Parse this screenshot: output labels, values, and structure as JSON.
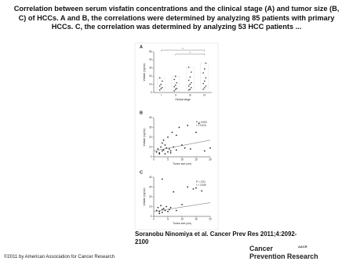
{
  "title": [
    "Correlation between serum visfatin concentrations and the clinical stage (A) and tumor size (B,",
    "C) of HCCs. A and B, the correlations were determined by analyzing 85 patients with primary",
    "HCCs. C, the correlation was determined by analyzing 53 HCC patients ..."
  ],
  "figure": {
    "panels": [
      {
        "type": "dot",
        "label": "A",
        "ylabel": "Visfatin (ng/mL)",
        "xlabel": "Clinical stage",
        "categories": [
          "I",
          "II",
          "III",
          "IV"
        ],
        "ylim": [
          0,
          50
        ],
        "yticks": [
          0,
          10,
          20,
          30,
          40,
          50
        ],
        "significance": [
          "*",
          "*"
        ],
        "values": [
          [
            3,
            5,
            6,
            8,
            10,
            14,
            18
          ],
          [
            2,
            4,
            5,
            7,
            9,
            12,
            16,
            20
          ],
          [
            3,
            4,
            6,
            8,
            10,
            12,
            15,
            19,
            25,
            31
          ],
          [
            4,
            6,
            8,
            11,
            14,
            18,
            24,
            29,
            36
          ]
        ]
      },
      {
        "type": "scatter",
        "label": "B",
        "ylabel": "Visfatin (ng/mL)",
        "xlabel": "Tumor size (cm)",
        "xlim": [
          0,
          20
        ],
        "xticks": [
          0,
          5,
          10,
          15,
          20
        ],
        "ylim": [
          0,
          40
        ],
        "yticks": [
          0,
          10,
          20,
          30,
          40
        ],
        "annotation": [
          "P = 0.003",
          "r = 0.313"
        ],
        "trend": [
          6,
          17
        ],
        "x": [
          1,
          1.5,
          2,
          2.5,
          3,
          3,
          3.5,
          4,
          4,
          4.5,
          5,
          5,
          5.5,
          6,
          6.5,
          7,
          8,
          9,
          10,
          11,
          12,
          13,
          15,
          16,
          18,
          20,
          2,
          3.5,
          6,
          8
        ],
        "y": [
          5,
          8,
          4,
          10,
          6,
          14,
          7,
          3,
          12,
          9,
          5,
          20,
          8,
          6,
          25,
          10,
          7,
          30,
          12,
          9,
          32,
          8,
          25,
          34,
          6,
          9,
          3,
          17,
          4,
          22
        ]
      },
      {
        "type": "scatter",
        "label": "C",
        "ylabel": "Visfatin (ng/mL)",
        "xlabel": "Tumor size (cm)",
        "xlim": [
          0,
          20
        ],
        "xticks": [
          0,
          5,
          10,
          15,
          20
        ],
        "ylim": [
          0,
          40
        ],
        "yticks": [
          0,
          10,
          20,
          30,
          40
        ],
        "annotation": [
          "P = 0.01",
          "r = 0.340"
        ],
        "trend": [
          5,
          14
        ],
        "x": [
          1,
          1.5,
          2,
          2.5,
          3,
          3,
          3.5,
          4,
          4.5,
          5,
          5.5,
          6,
          7,
          8,
          10,
          12,
          14,
          15,
          17,
          2,
          3
        ],
        "y": [
          6,
          9,
          5,
          11,
          7,
          4,
          8,
          6,
          10,
          5,
          7,
          9,
          25,
          6,
          12,
          30,
          28,
          29,
          26,
          3,
          38
        ]
      }
    ]
  },
  "citation": [
    "Soranobu Ninomiya et al. Cancer Prev Res 2011;4:2092-",
    "2100"
  ],
  "copyright": "©2011 by American Association for Cancer Research",
  "logo": {
    "mark": "AACR",
    "lines": [
      "Cancer",
      "Prevention Research"
    ]
  }
}
